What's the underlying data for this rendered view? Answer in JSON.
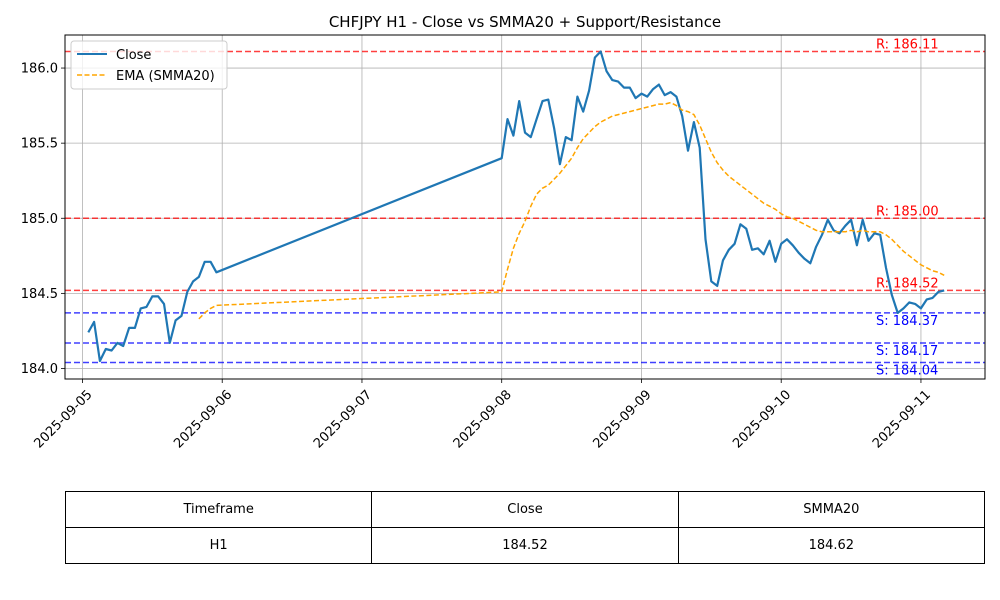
{
  "chart_data": {
    "type": "line",
    "title": "CHFJPY H1 - Close vs SMMA20 + Support/Resistance",
    "xlabel": "",
    "ylabel": "",
    "xlim": [
      "2025-09-04 21:00",
      "2025-09-11 11:00"
    ],
    "ylim": [
      183.93,
      186.22
    ],
    "grid": true,
    "legend_position": "upper-left",
    "x_ticks": [
      "2025-09-05",
      "2025-09-06",
      "2025-09-07",
      "2025-09-08",
      "2025-09-09",
      "2025-09-10",
      "2025-09-11"
    ],
    "y_ticks": [
      "184.0",
      "184.5",
      "185.0",
      "185.5",
      "186.0"
    ],
    "series": [
      {
        "name": "Close",
        "color": "#1f77b4",
        "style": "solid",
        "points": [
          [
            "2025-09-05 01:00",
            184.24
          ],
          [
            "2025-09-05 02:00",
            184.31
          ],
          [
            "2025-09-05 03:00",
            184.05
          ],
          [
            "2025-09-05 04:00",
            184.13
          ],
          [
            "2025-09-05 05:00",
            184.12
          ],
          [
            "2025-09-05 06:00",
            184.17
          ],
          [
            "2025-09-05 07:00",
            184.15
          ],
          [
            "2025-09-05 08:00",
            184.27
          ],
          [
            "2025-09-05 09:00",
            184.27
          ],
          [
            "2025-09-05 10:00",
            184.4
          ],
          [
            "2025-09-05 11:00",
            184.41
          ],
          [
            "2025-09-05 12:00",
            184.48
          ],
          [
            "2025-09-05 13:00",
            184.48
          ],
          [
            "2025-09-05 14:00",
            184.43
          ],
          [
            "2025-09-05 15:00",
            184.17
          ],
          [
            "2025-09-05 16:00",
            184.32
          ],
          [
            "2025-09-05 17:00",
            184.35
          ],
          [
            "2025-09-05 18:00",
            184.51
          ],
          [
            "2025-09-05 19:00",
            184.58
          ],
          [
            "2025-09-05 20:00",
            184.61
          ],
          [
            "2025-09-05 21:00",
            184.71
          ],
          [
            "2025-09-05 22:00",
            184.71
          ],
          [
            "2025-09-05 23:00",
            184.64
          ],
          [
            "2025-09-08 00:00",
            185.4
          ],
          [
            "2025-09-08 01:00",
            185.66
          ],
          [
            "2025-09-08 02:00",
            185.55
          ],
          [
            "2025-09-08 03:00",
            185.78
          ],
          [
            "2025-09-08 04:00",
            185.57
          ],
          [
            "2025-09-08 05:00",
            185.54
          ],
          [
            "2025-09-08 06:00",
            185.66
          ],
          [
            "2025-09-08 07:00",
            185.78
          ],
          [
            "2025-09-08 08:00",
            185.79
          ],
          [
            "2025-09-08 09:00",
            185.6
          ],
          [
            "2025-09-08 10:00",
            185.36
          ],
          [
            "2025-09-08 11:00",
            185.54
          ],
          [
            "2025-09-08 12:00",
            185.52
          ],
          [
            "2025-09-08 13:00",
            185.81
          ],
          [
            "2025-09-08 14:00",
            185.71
          ],
          [
            "2025-09-08 15:00",
            185.85
          ],
          [
            "2025-09-08 16:00",
            186.07
          ],
          [
            "2025-09-08 17:00",
            186.11
          ],
          [
            "2025-09-08 18:00",
            185.98
          ],
          [
            "2025-09-08 19:00",
            185.92
          ],
          [
            "2025-09-08 20:00",
            185.91
          ],
          [
            "2025-09-08 21:00",
            185.87
          ],
          [
            "2025-09-08 22:00",
            185.87
          ],
          [
            "2025-09-08 23:00",
            185.8
          ],
          [
            "2025-09-09 00:00",
            185.83
          ],
          [
            "2025-09-09 01:00",
            185.81
          ],
          [
            "2025-09-09 02:00",
            185.86
          ],
          [
            "2025-09-09 03:00",
            185.89
          ],
          [
            "2025-09-09 04:00",
            185.82
          ],
          [
            "2025-09-09 05:00",
            185.84
          ],
          [
            "2025-09-09 06:00",
            185.81
          ],
          [
            "2025-09-09 07:00",
            185.68
          ],
          [
            "2025-09-09 08:00",
            185.45
          ],
          [
            "2025-09-09 09:00",
            185.64
          ],
          [
            "2025-09-09 10:00",
            185.47
          ],
          [
            "2025-09-09 11:00",
            184.86
          ],
          [
            "2025-09-09 12:00",
            184.58
          ],
          [
            "2025-09-09 13:00",
            184.55
          ],
          [
            "2025-09-09 14:00",
            184.72
          ],
          [
            "2025-09-09 15:00",
            184.79
          ],
          [
            "2025-09-09 16:00",
            184.83
          ],
          [
            "2025-09-09 17:00",
            184.96
          ],
          [
            "2025-09-09 18:00",
            184.93
          ],
          [
            "2025-09-09 19:00",
            184.79
          ],
          [
            "2025-09-09 20:00",
            184.8
          ],
          [
            "2025-09-09 21:00",
            184.76
          ],
          [
            "2025-09-09 22:00",
            184.85
          ],
          [
            "2025-09-09 23:00",
            184.71
          ],
          [
            "2025-09-10 00:00",
            184.83
          ],
          [
            "2025-09-10 01:00",
            184.86
          ],
          [
            "2025-09-10 02:00",
            184.82
          ],
          [
            "2025-09-10 03:00",
            184.77
          ],
          [
            "2025-09-10 04:00",
            184.73
          ],
          [
            "2025-09-10 05:00",
            184.7
          ],
          [
            "2025-09-10 06:00",
            184.81
          ],
          [
            "2025-09-10 07:00",
            184.89
          ],
          [
            "2025-09-10 08:00",
            184.99
          ],
          [
            "2025-09-10 09:00",
            184.92
          ],
          [
            "2025-09-10 10:00",
            184.9
          ],
          [
            "2025-09-10 11:00",
            184.95
          ],
          [
            "2025-09-10 12:00",
            184.99
          ],
          [
            "2025-09-10 13:00",
            184.82
          ],
          [
            "2025-09-10 14:00",
            184.99
          ],
          [
            "2025-09-10 15:00",
            184.85
          ],
          [
            "2025-09-10 16:00",
            184.9
          ],
          [
            "2025-09-10 17:00",
            184.89
          ],
          [
            "2025-09-10 18:00",
            184.67
          ],
          [
            "2025-09-10 19:00",
            184.49
          ],
          [
            "2025-09-10 20:00",
            184.37
          ],
          [
            "2025-09-10 21:00",
            184.4
          ],
          [
            "2025-09-10 22:00",
            184.44
          ],
          [
            "2025-09-10 23:00",
            184.43
          ],
          [
            "2025-09-11 00:00",
            184.4
          ],
          [
            "2025-09-11 01:00",
            184.46
          ],
          [
            "2025-09-11 02:00",
            184.47
          ],
          [
            "2025-09-11 03:00",
            184.51
          ],
          [
            "2025-09-11 04:00",
            184.52
          ]
        ]
      },
      {
        "name": "EMA (SMMA20)",
        "color": "#ffa500",
        "style": "dashed",
        "points": [
          [
            "2025-09-05 20:00",
            184.33
          ],
          [
            "2025-09-05 21:00",
            184.37
          ],
          [
            "2025-09-05 22:00",
            184.4
          ],
          [
            "2025-09-05 23:00",
            184.42
          ],
          [
            "2025-09-08 00:00",
            184.51
          ],
          [
            "2025-09-08 01:00",
            184.66
          ],
          [
            "2025-09-08 02:00",
            184.8
          ],
          [
            "2025-09-08 03:00",
            184.9
          ],
          [
            "2025-09-08 04:00",
            184.98
          ],
          [
            "2025-09-08 05:00",
            185.08
          ],
          [
            "2025-09-08 06:00",
            185.16
          ],
          [
            "2025-09-08 07:00",
            185.2
          ],
          [
            "2025-09-08 08:00",
            185.22
          ],
          [
            "2025-09-08 09:00",
            185.26
          ],
          [
            "2025-09-08 10:00",
            185.3
          ],
          [
            "2025-09-08 11:00",
            185.35
          ],
          [
            "2025-09-08 12:00",
            185.4
          ],
          [
            "2025-09-08 13:00",
            185.47
          ],
          [
            "2025-09-08 14:00",
            185.53
          ],
          [
            "2025-09-08 15:00",
            185.57
          ],
          [
            "2025-09-08 16:00",
            185.61
          ],
          [
            "2025-09-08 17:00",
            185.64
          ],
          [
            "2025-09-08 18:00",
            185.66
          ],
          [
            "2025-09-08 19:00",
            185.68
          ],
          [
            "2025-09-08 20:00",
            185.69
          ],
          [
            "2025-09-08 21:00",
            185.7
          ],
          [
            "2025-09-08 22:00",
            185.71
          ],
          [
            "2025-09-08 23:00",
            185.72
          ],
          [
            "2025-09-09 00:00",
            185.73
          ],
          [
            "2025-09-09 01:00",
            185.74
          ],
          [
            "2025-09-09 02:00",
            185.75
          ],
          [
            "2025-09-09 03:00",
            185.76
          ],
          [
            "2025-09-09 04:00",
            185.76
          ],
          [
            "2025-09-09 05:00",
            185.77
          ],
          [
            "2025-09-09 06:00",
            185.75
          ],
          [
            "2025-09-09 07:00",
            185.72
          ],
          [
            "2025-09-09 08:00",
            185.71
          ],
          [
            "2025-09-09 09:00",
            185.69
          ],
          [
            "2025-09-09 10:00",
            185.62
          ],
          [
            "2025-09-09 11:00",
            185.53
          ],
          [
            "2025-09-09 12:00",
            185.44
          ],
          [
            "2025-09-09 13:00",
            185.37
          ],
          [
            "2025-09-09 14:00",
            185.32
          ],
          [
            "2025-09-09 15:00",
            185.28
          ],
          [
            "2025-09-09 16:00",
            185.25
          ],
          [
            "2025-09-09 17:00",
            185.22
          ],
          [
            "2025-09-09 18:00",
            185.19
          ],
          [
            "2025-09-09 19:00",
            185.16
          ],
          [
            "2025-09-09 20:00",
            185.13
          ],
          [
            "2025-09-09 21:00",
            185.1
          ],
          [
            "2025-09-09 22:00",
            185.08
          ],
          [
            "2025-09-09 23:00",
            185.06
          ],
          [
            "2025-09-10 00:00",
            185.03
          ],
          [
            "2025-09-10 01:00",
            185.01
          ],
          [
            "2025-09-10 02:00",
            185.0
          ],
          [
            "2025-09-10 03:00",
            184.98
          ],
          [
            "2025-09-10 04:00",
            184.96
          ],
          [
            "2025-09-10 05:00",
            184.94
          ],
          [
            "2025-09-10 06:00",
            184.92
          ],
          [
            "2025-09-10 07:00",
            184.91
          ],
          [
            "2025-09-10 08:00",
            184.91
          ],
          [
            "2025-09-10 09:00",
            184.91
          ],
          [
            "2025-09-10 10:00",
            184.91
          ],
          [
            "2025-09-10 11:00",
            184.91
          ],
          [
            "2025-09-10 12:00",
            184.92
          ],
          [
            "2025-09-10 13:00",
            184.91
          ],
          [
            "2025-09-10 14:00",
            184.92
          ],
          [
            "2025-09-10 15:00",
            184.91
          ],
          [
            "2025-09-10 16:00",
            184.91
          ],
          [
            "2025-09-10 17:00",
            184.91
          ],
          [
            "2025-09-10 18:00",
            184.89
          ],
          [
            "2025-09-10 19:00",
            184.86
          ],
          [
            "2025-09-10 20:00",
            184.82
          ],
          [
            "2025-09-10 21:00",
            184.78
          ],
          [
            "2025-09-10 22:00",
            184.75
          ],
          [
            "2025-09-10 23:00",
            184.72
          ],
          [
            "2025-09-11 00:00",
            184.69
          ],
          [
            "2025-09-11 01:00",
            184.67
          ],
          [
            "2025-09-11 02:00",
            184.65
          ],
          [
            "2025-09-11 03:00",
            184.64
          ],
          [
            "2025-09-11 04:00",
            184.62
          ]
        ]
      }
    ],
    "levels": [
      {
        "kind": "resistance",
        "value": 186.11,
        "label": "R: 186.11",
        "color": "#ff0000"
      },
      {
        "kind": "resistance",
        "value": 185.0,
        "label": "R: 185.00",
        "color": "#ff0000"
      },
      {
        "kind": "resistance",
        "value": 184.52,
        "label": "R: 184.52",
        "color": "#ff0000"
      },
      {
        "kind": "support",
        "value": 184.37,
        "label": "S: 184.37",
        "color": "#0000ff"
      },
      {
        "kind": "support",
        "value": 184.17,
        "label": "S: 184.17",
        "color": "#0000ff"
      },
      {
        "kind": "support",
        "value": 184.04,
        "label": "S: 184.04",
        "color": "#0000ff"
      }
    ]
  },
  "table": {
    "headers": [
      "Timeframe",
      "Close",
      "SMMA20"
    ],
    "rows": [
      [
        "H1",
        "184.52",
        "184.62"
      ]
    ]
  }
}
